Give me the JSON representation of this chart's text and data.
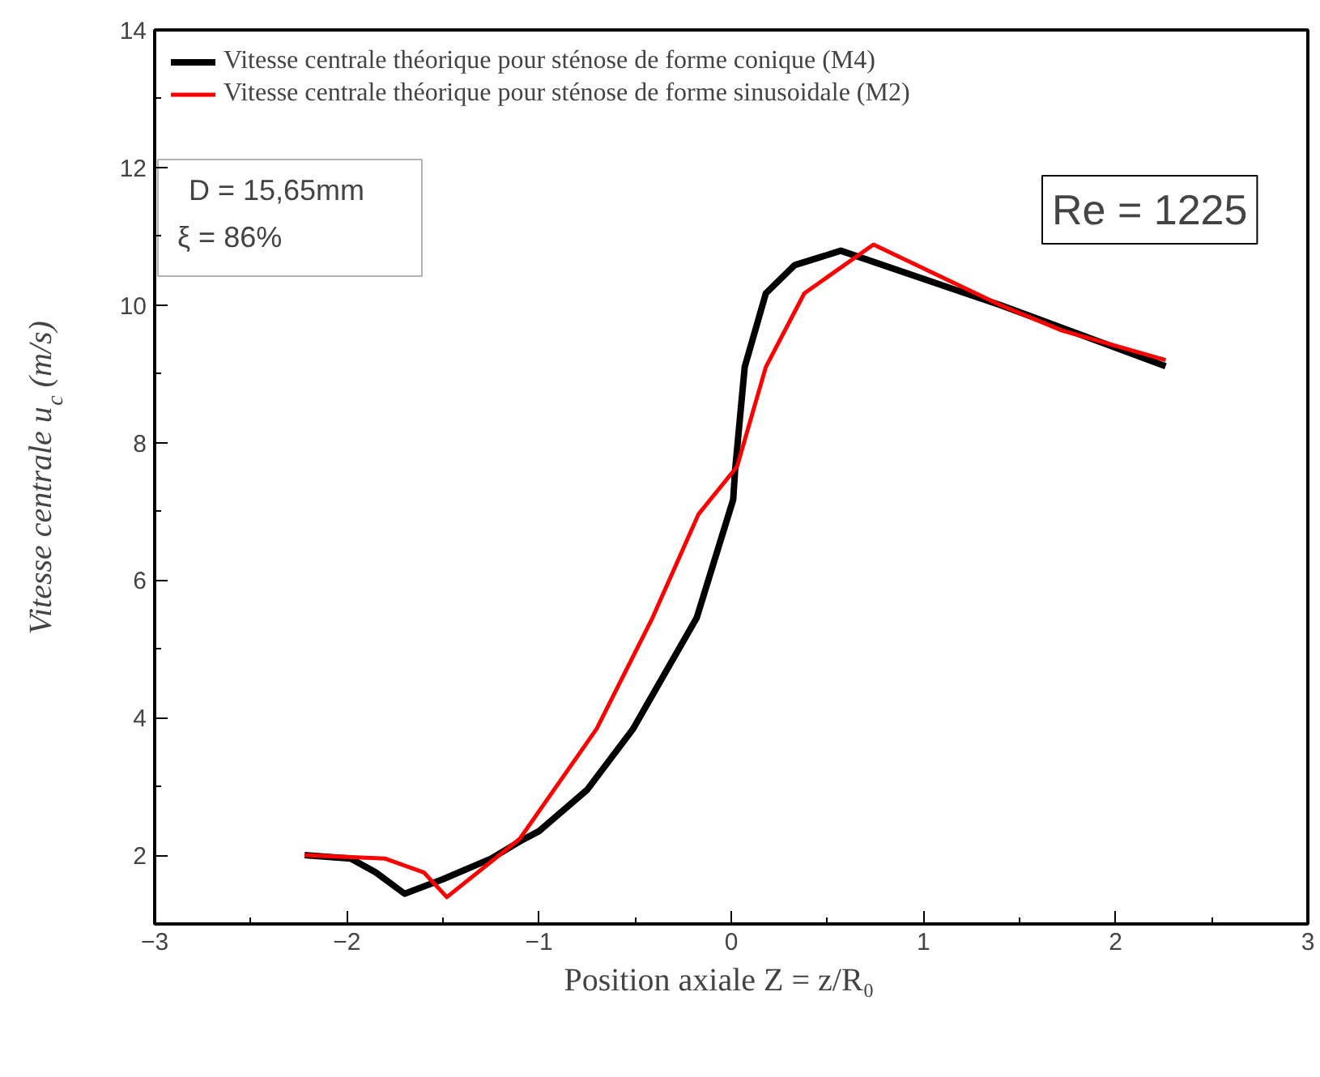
{
  "chart_data": {
    "type": "line",
    "xlabel": "Position axiale    Z = z/R₀",
    "ylabel": "Vitesse centrale u$_{c}$ (m/s)",
    "xlim": [
      -3,
      3
    ],
    "xticks": [
      -3,
      -2,
      -1,
      0,
      1,
      2,
      3
    ],
    "ylim": [
      1,
      14
    ],
    "yticks": [
      2,
      4,
      6,
      8,
      10,
      12,
      14
    ],
    "grid": false,
    "legend": "top left",
    "marker": "none",
    "line_style": "solid",
    "annotations": [
      "D = 15,65mm",
      "ξ = 86%",
      "Re = 1225"
    ],
    "series": [
      {
        "name": "Vitesse centrale théorique pour sténose de forme conique (M4)",
        "color": "#000000",
        "x": [
          -2.22,
          -1.98,
          -1.85,
          -1.7,
          -1.5,
          -1.25,
          -1.1,
          -1.0,
          -0.75,
          -0.51,
          -0.18,
          0.01,
          0.02,
          0.07,
          0.18,
          0.33,
          0.57,
          1.22,
          1.4,
          2.26
        ],
        "values": [
          2.0,
          1.95,
          1.75,
          1.44,
          1.65,
          1.95,
          2.2,
          2.35,
          2.95,
          3.84,
          5.45,
          7.17,
          7.6,
          9.1,
          10.17,
          10.58,
          10.79,
          10.17,
          10.0,
          9.11
        ]
      },
      {
        "name": "Vitesse centrale théorique pour sténose de forme sinusoidale (M2)",
        "color": "#ff0000",
        "x": [
          -2.22,
          -1.8,
          -1.6,
          -1.48,
          -1.1,
          -0.7,
          -0.41,
          -0.17,
          0.03,
          0.18,
          0.38,
          0.74,
          1.4,
          1.72,
          2.26
        ],
        "values": [
          2.0,
          1.95,
          1.75,
          1.39,
          2.24,
          3.84,
          5.45,
          6.96,
          7.65,
          9.1,
          10.17,
          10.88,
          10.0,
          9.63,
          9.2
        ]
      }
    ]
  }
}
